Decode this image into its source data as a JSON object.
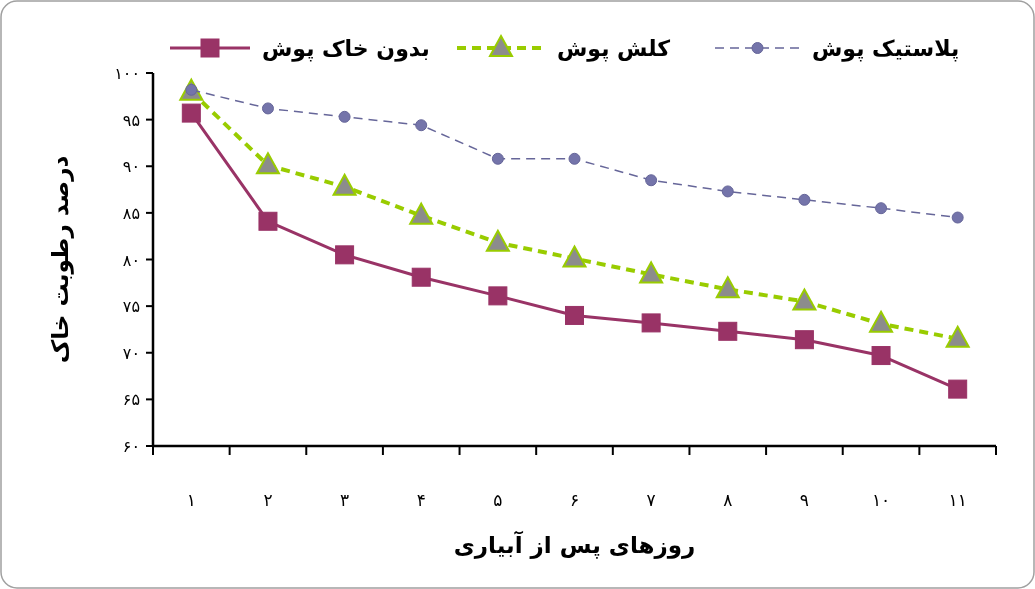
{
  "chart_data": {
    "type": "line",
    "xlabel": "روزهای پس از آبیاری",
    "ylabel": "درصد رطوبت خاک",
    "categories": [
      "۱",
      "۲",
      "۳",
      "۴",
      "۵",
      "۶",
      "۷",
      "۸",
      "۹",
      "۱۰",
      "۱۱"
    ],
    "ylim": [
      60,
      100
    ],
    "yticks": [
      {
        "value": 60,
        "label": "۶۰"
      },
      {
        "value": 65,
        "label": "۶۵"
      },
      {
        "value": 70,
        "label": "۷۰"
      },
      {
        "value": 75,
        "label": "۷۵"
      },
      {
        "value": 80,
        "label": "۸۰"
      },
      {
        "value": 85,
        "label": "۸۵"
      },
      {
        "value": 90,
        "label": "۹۰"
      },
      {
        "value": 95,
        "label": "۹۵"
      },
      {
        "value": 100,
        "label": "۱۰۰"
      }
    ],
    "grid": false,
    "legend": "top",
    "series": [
      {
        "name": "بدون خاک پوش",
        "color": "#993366",
        "marker": "square",
        "line_style": "solid",
        "values": [
          95.7,
          84.1,
          80.5,
          78.1,
          76.1,
          74.0,
          73.2,
          72.3,
          71.4,
          69.7,
          66.1
        ]
      },
      {
        "name": "کلش پوش",
        "color": "#99cc00",
        "marker": "triangle",
        "line_style": "dashed",
        "values": [
          98.0,
          90.1,
          87.8,
          84.7,
          81.8,
          80.1,
          78.4,
          76.8,
          75.5,
          73.1,
          71.5
        ]
      },
      {
        "name": "پلاستیک پوش",
        "color": "#666699",
        "marker": "circle",
        "line_style": "dashed",
        "values": [
          98.2,
          96.2,
          95.3,
          94.4,
          90.8,
          90.8,
          88.5,
          87.3,
          86.4,
          85.5,
          84.5
        ]
      }
    ]
  }
}
